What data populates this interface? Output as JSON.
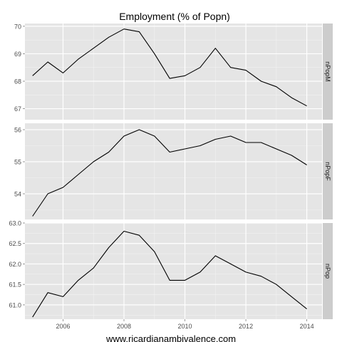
{
  "chart_data": {
    "type": "line",
    "title": "Employment (% of Popn)",
    "caption": "www.ricardianambivalence.com",
    "x_ticks": [
      2006,
      2008,
      2010,
      2012,
      2014
    ],
    "xlim": [
      2004.75,
      2014.5
    ],
    "grid": true,
    "panels": [
      {
        "name": "nPopM",
        "ylim": [
          66.6,
          70.1
        ],
        "y_ticks": [
          67,
          68,
          69,
          70
        ],
        "x": [
          2005.0,
          2005.5,
          2006.0,
          2006.5,
          2007.0,
          2007.5,
          2008.0,
          2008.5,
          2009.0,
          2009.5,
          2010.0,
          2010.5,
          2011.0,
          2011.5,
          2012.0,
          2012.5,
          2013.0,
          2013.5,
          2014.0
        ],
        "values": [
          68.2,
          68.7,
          68.3,
          68.8,
          69.2,
          69.6,
          69.9,
          69.8,
          69.0,
          68.1,
          68.2,
          68.5,
          69.2,
          68.5,
          68.4,
          68.0,
          67.8,
          67.4,
          67.1
        ]
      },
      {
        "name": "nPopF",
        "ylim": [
          53.2,
          56.2
        ],
        "y_ticks": [
          54,
          55,
          56
        ],
        "x": [
          2005.0,
          2005.5,
          2006.0,
          2006.5,
          2007.0,
          2007.5,
          2008.0,
          2008.5,
          2009.0,
          2009.5,
          2010.0,
          2010.5,
          2011.0,
          2011.5,
          2012.0,
          2012.5,
          2013.0,
          2013.5,
          2014.0
        ],
        "values": [
          53.3,
          54.0,
          54.2,
          54.6,
          55.0,
          55.3,
          55.8,
          56.0,
          55.8,
          55.3,
          55.4,
          55.5,
          55.7,
          55.8,
          55.6,
          55.6,
          55.4,
          55.2,
          54.9
        ]
      },
      {
        "name": "nPop",
        "ylim": [
          60.65,
          63.0
        ],
        "y_ticks": [
          61.0,
          61.5,
          62.0,
          62.5,
          63.0
        ],
        "x": [
          2005.0,
          2005.5,
          2006.0,
          2006.5,
          2007.0,
          2007.5,
          2008.0,
          2008.5,
          2009.0,
          2009.5,
          2010.0,
          2010.5,
          2011.0,
          2011.5,
          2012.0,
          2012.5,
          2013.0,
          2013.5,
          2014.0
        ],
        "values": [
          60.7,
          61.3,
          61.2,
          61.6,
          61.9,
          62.4,
          62.8,
          62.7,
          62.3,
          61.6,
          61.6,
          61.8,
          62.2,
          62.0,
          61.8,
          61.7,
          61.5,
          61.2,
          60.9
        ]
      }
    ]
  }
}
